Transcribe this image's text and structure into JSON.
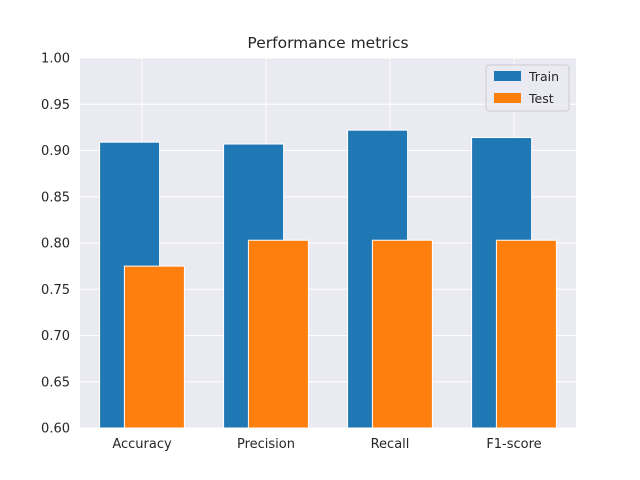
{
  "chart_data": {
    "type": "bar",
    "title": "Performance metrics",
    "xlabel": "",
    "ylabel": "",
    "categories": [
      "Accuracy",
      "Precision",
      "Recall",
      "F1-score"
    ],
    "series": [
      {
        "name": "Train",
        "values": [
          0.909,
          0.907,
          0.922,
          0.914
        ],
        "color": "#1f77b4"
      },
      {
        "name": "Test",
        "values": [
          0.775,
          0.803,
          0.803,
          0.803
        ],
        "color": "#ff7f0e"
      }
    ],
    "ylim": [
      0.6,
      1.0
    ],
    "yticks": [
      "0.60",
      "0.65",
      "0.70",
      "0.75",
      "0.80",
      "0.85",
      "0.90",
      "0.95",
      "1.00"
    ],
    "grid": true,
    "legend_position": "top-right",
    "colors": {
      "plot_background": "#eaeaf2",
      "grid": "#ffffff"
    }
  }
}
